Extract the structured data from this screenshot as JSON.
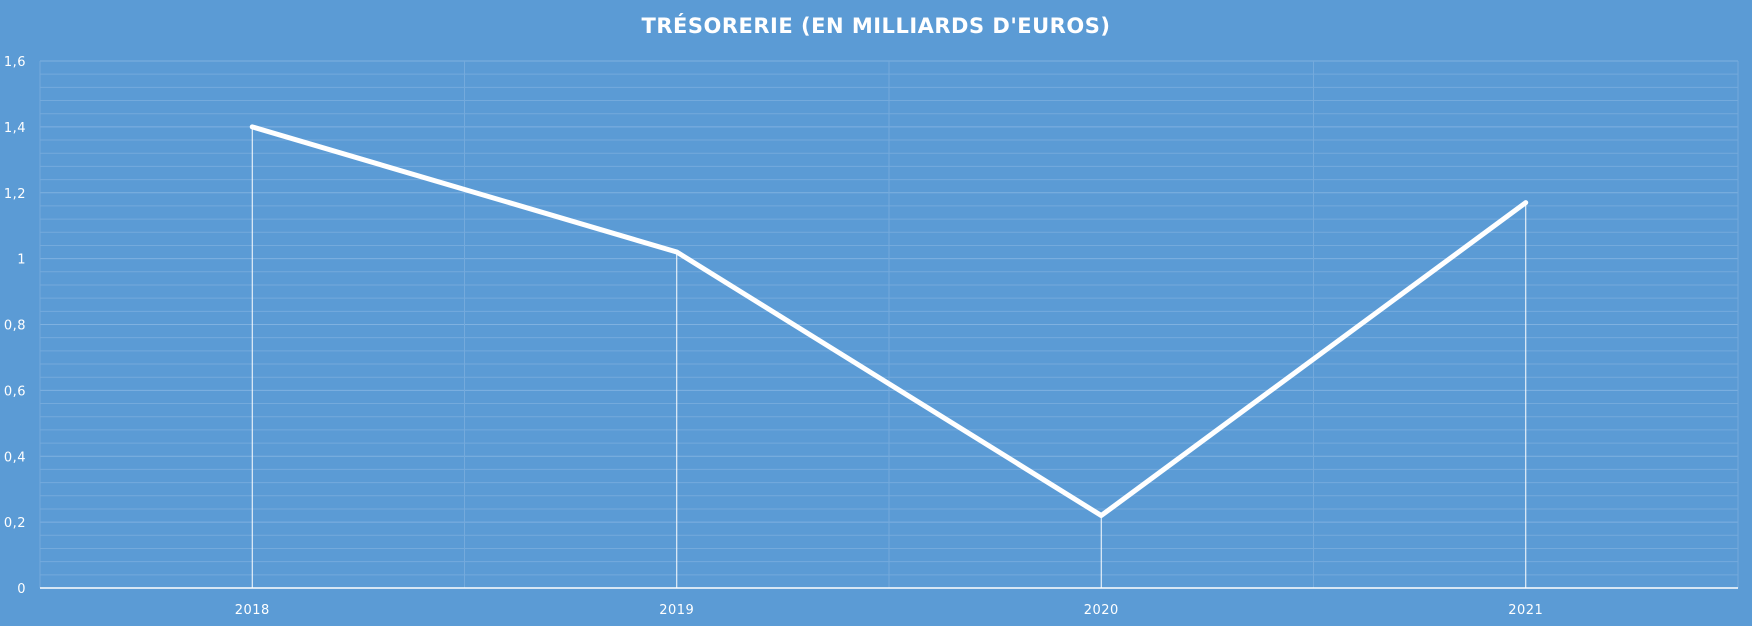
{
  "chart_data": {
    "type": "line",
    "title": "TRÉSORERIE (EN MILLIARDS D'EUROS)",
    "categories": [
      "2018",
      "2019",
      "2020",
      "2021"
    ],
    "series": [
      {
        "values": [
          1.4,
          1.02,
          0.22,
          1.17
        ]
      }
    ],
    "ylim": [
      0,
      1.6
    ],
    "y_ticks": [
      0,
      0.2,
      0.4,
      0.6,
      0.8,
      1,
      1.2,
      1.4,
      1.6
    ],
    "y_tick_labels": [
      "0",
      "0,2",
      "0,4",
      "0,6",
      "0,8",
      "1",
      "1,2",
      "1,4",
      "1,6"
    ],
    "grid": true,
    "drop_lines": true,
    "colors": {
      "background": "#5b9bd5",
      "line": "#ffffff",
      "grid": "#7fb1e0"
    }
  }
}
